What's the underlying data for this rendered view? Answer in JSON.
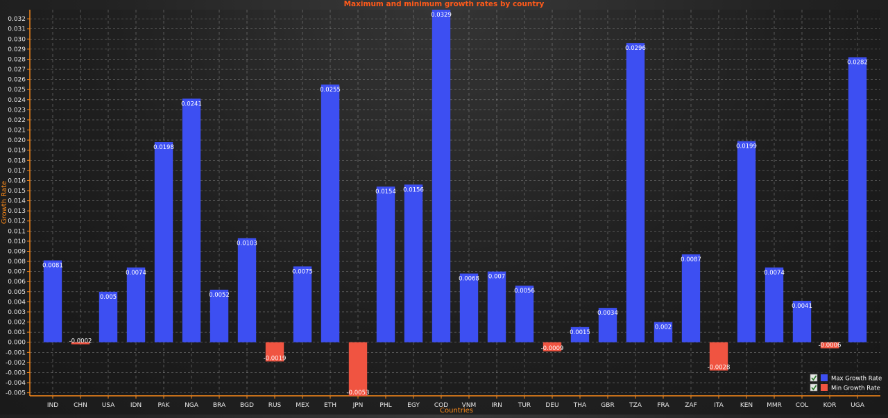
{
  "chart_data": {
    "type": "bar",
    "title": "Maximum and minimum growth rates by country",
    "xlabel": "Countries",
    "ylabel": "Growth Rate",
    "ylim": [
      -0.0053,
      0.0329
    ],
    "y_tick_start": -0.005,
    "y_tick_end": 0.032,
    "y_tick_step": 0.001,
    "grid": true,
    "legend_position": "bottom-right",
    "categories": [
      "IND",
      "CHN",
      "USA",
      "IDN",
      "PAK",
      "NGA",
      "BRA",
      "BGD",
      "RUS",
      "MEX",
      "ETH",
      "JPN",
      "PHL",
      "EGY",
      "COD",
      "VNM",
      "IRN",
      "TUR",
      "DEU",
      "THA",
      "GBR",
      "TZA",
      "FRA",
      "ZAF",
      "ITA",
      "KEN",
      "MMR",
      "COL",
      "KOR",
      "UGA"
    ],
    "values": [
      0.0081,
      -0.0002,
      0.005,
      0.0074,
      0.0198,
      0.0241,
      0.0052,
      0.0103,
      -0.0019,
      0.0075,
      0.0255,
      -0.0053,
      0.0154,
      0.0156,
      0.0329,
      0.0068,
      0.007,
      0.0056,
      -0.0009,
      0.0015,
      0.0034,
      0.0296,
      0.002,
      0.0087,
      -0.0028,
      0.0199,
      0.0074,
      0.0041,
      -0.0006,
      0.0282
    ],
    "value_labels": [
      "0.0081",
      "-0.0002",
      "0.005",
      "0.0074",
      "0.0198",
      "0.0241",
      "0.0052",
      "0.0103",
      "-0.0019",
      "0.0075",
      "0.0255",
      "-0.0053",
      "0.0154",
      "0.0156",
      "0.0329",
      "0.0068",
      "0.007",
      "0.0056",
      "-0.0009",
      "0.0015",
      "0.0034",
      "0.0296",
      "0.002",
      "0.0087",
      "-0.0028",
      "0.0199",
      "0.0074",
      "0.0041",
      "-0.0006",
      "0.0282"
    ],
    "series": [
      {
        "name": "Max Growth Rate",
        "color": "#3d4ff2",
        "checked": true
      },
      {
        "name": "Min Growth Rate",
        "color": "#f05441",
        "checked": true
      }
    ]
  },
  "colors": {
    "title": "#ff5a1a",
    "axis_label": "#ff8c1a",
    "axis_line": "#ff8c1a",
    "tick_text": "#e8e8e8",
    "grid": "#bbbbbb",
    "label_text": "#ffffff"
  }
}
